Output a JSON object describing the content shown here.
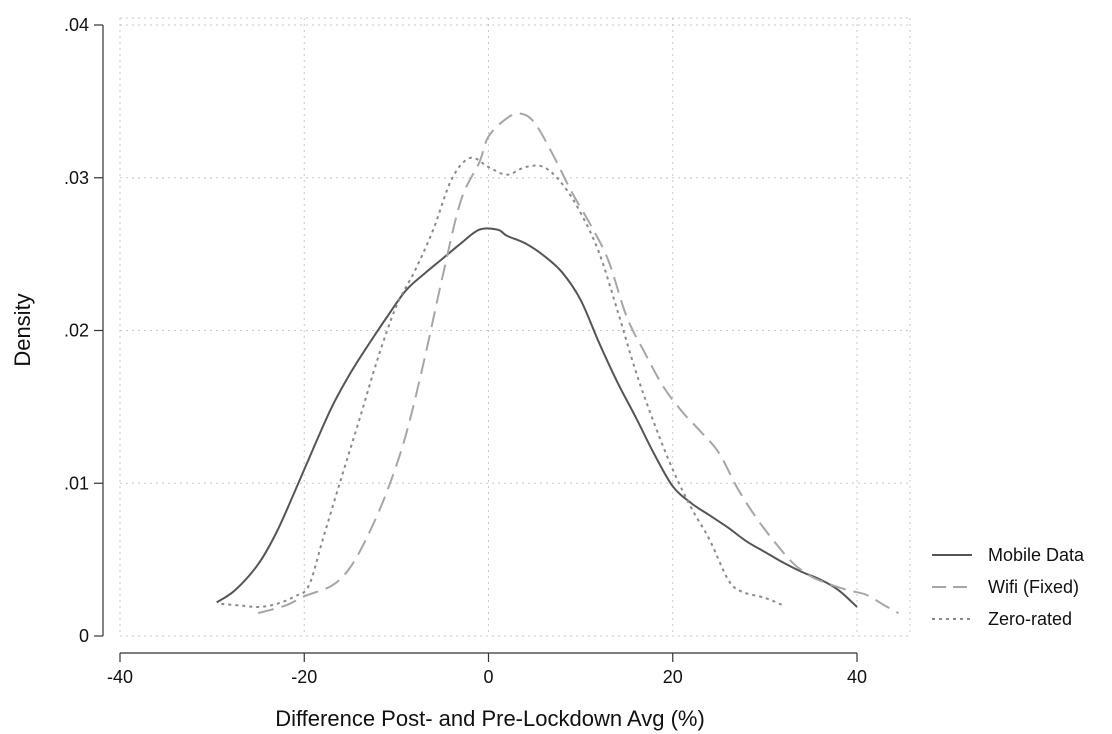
{
  "chart_data": {
    "type": "line",
    "title": "",
    "xlabel": "Difference Post- and Pre-Lockdown Avg (%)",
    "ylabel": "Density",
    "xlim": [
      -40,
      40
    ],
    "ylim": [
      0,
      0.04
    ],
    "x_ticks": [
      {
        "value": -40,
        "label": "-40"
      },
      {
        "value": -20,
        "label": "-20"
      },
      {
        "value": 0,
        "label": "0"
      },
      {
        "value": 20,
        "label": "20"
      },
      {
        "value": 40,
        "label": "40"
      }
    ],
    "y_ticks": [
      {
        "value": 0,
        "label": "0"
      },
      {
        "value": 0.01,
        "label": ".01"
      },
      {
        "value": 0.02,
        "label": ".02"
      },
      {
        "value": 0.03,
        "label": ".03"
      },
      {
        "value": 0.04,
        "label": ".04"
      }
    ],
    "grid": true,
    "legend_position": "right",
    "series": [
      {
        "name": "Mobile Data",
        "color": "#555555",
        "style": "solid",
        "points": [
          [
            -29.5,
            0.0022
          ],
          [
            -27.5,
            0.003
          ],
          [
            -25,
            0.0047
          ],
          [
            -23,
            0.0068
          ],
          [
            -21,
            0.0095
          ],
          [
            -19,
            0.0123
          ],
          [
            -17,
            0.015
          ],
          [
            -15,
            0.0172
          ],
          [
            -13,
            0.0191
          ],
          [
            -11,
            0.0209
          ],
          [
            -9,
            0.0226
          ],
          [
            -7,
            0.0237
          ],
          [
            -5,
            0.0247
          ],
          [
            -3,
            0.0257
          ],
          [
            -1,
            0.0266
          ],
          [
            1,
            0.0266
          ],
          [
            2,
            0.0262
          ],
          [
            4,
            0.0257
          ],
          [
            6,
            0.0249
          ],
          [
            8,
            0.0238
          ],
          [
            10,
            0.022
          ],
          [
            12,
            0.0192
          ],
          [
            14,
            0.0166
          ],
          [
            16,
            0.0143
          ],
          [
            18,
            0.0119
          ],
          [
            20,
            0.0098
          ],
          [
            22,
            0.0087
          ],
          [
            24,
            0.0079
          ],
          [
            26,
            0.0071
          ],
          [
            28,
            0.0062
          ],
          [
            30,
            0.0055
          ],
          [
            32,
            0.0048
          ],
          [
            34,
            0.0042
          ],
          [
            36,
            0.0037
          ],
          [
            38,
            0.003
          ],
          [
            40,
            0.0019
          ]
        ]
      },
      {
        "name": "Wifi (Fixed)",
        "color": "#a6a6a6",
        "style": "dashed",
        "points": [
          [
            -25,
            0.0015
          ],
          [
            -22,
            0.002
          ],
          [
            -20,
            0.0026
          ],
          [
            -17,
            0.0033
          ],
          [
            -15,
            0.0045
          ],
          [
            -13,
            0.0067
          ],
          [
            -11,
            0.0095
          ],
          [
            -9,
            0.0131
          ],
          [
            -7,
            0.018
          ],
          [
            -5,
            0.0235
          ],
          [
            -3,
            0.0285
          ],
          [
            -1,
            0.031
          ],
          [
            0,
            0.0327
          ],
          [
            2,
            0.0339
          ],
          [
            3.5,
            0.0342
          ],
          [
            5,
            0.0336
          ],
          [
            7,
            0.0315
          ],
          [
            9,
            0.0291
          ],
          [
            11,
            0.027
          ],
          [
            13,
            0.0246
          ],
          [
            15,
            0.0209
          ],
          [
            17,
            0.0185
          ],
          [
            19,
            0.0163
          ],
          [
            21,
            0.0147
          ],
          [
            23,
            0.0134
          ],
          [
            25,
            0.012
          ],
          [
            27,
            0.0097
          ],
          [
            29,
            0.0078
          ],
          [
            31,
            0.0062
          ],
          [
            33,
            0.0048
          ],
          [
            35,
            0.0039
          ],
          [
            37,
            0.0034
          ],
          [
            39,
            0.003
          ],
          [
            41,
            0.0027
          ],
          [
            43,
            0.002
          ],
          [
            44.5,
            0.0015
          ]
        ]
      },
      {
        "name": "Zero-rated",
        "color": "#8a8a8a",
        "style": "dotted",
        "points": [
          [
            -29,
            0.0021
          ],
          [
            -27,
            0.002
          ],
          [
            -25,
            0.0019
          ],
          [
            -23,
            0.0021
          ],
          [
            -21,
            0.0026
          ],
          [
            -19.5,
            0.0033
          ],
          [
            -18,
            0.0063
          ],
          [
            -16,
            0.0103
          ],
          [
            -14,
            0.0142
          ],
          [
            -12,
            0.0182
          ],
          [
            -10,
            0.0216
          ],
          [
            -8,
            0.0239
          ],
          [
            -6,
            0.0266
          ],
          [
            -4,
            0.0299
          ],
          [
            -2,
            0.0313
          ],
          [
            0,
            0.0307
          ],
          [
            2,
            0.0302
          ],
          [
            4,
            0.0307
          ],
          [
            6,
            0.0307
          ],
          [
            8,
            0.0296
          ],
          [
            10,
            0.0277
          ],
          [
            12,
            0.0251
          ],
          [
            14,
            0.0213
          ],
          [
            16,
            0.0173
          ],
          [
            18,
            0.0139
          ],
          [
            20,
            0.0109
          ],
          [
            22,
            0.0084
          ],
          [
            24,
            0.0063
          ],
          [
            26,
            0.0037
          ],
          [
            27.5,
            0.0029
          ],
          [
            30,
            0.0025
          ],
          [
            32,
            0.002
          ]
        ]
      }
    ]
  }
}
